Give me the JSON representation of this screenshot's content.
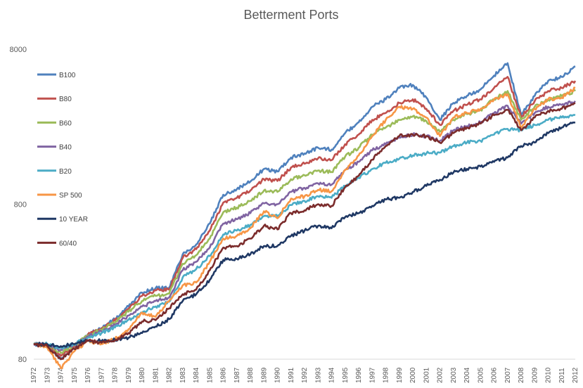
{
  "chart_data": {
    "type": "line",
    "title": "Betterment Ports",
    "xlabel": "",
    "ylabel": "",
    "y_scale": "log",
    "ylim": [
      80,
      8000
    ],
    "yticks": [
      "80",
      "800",
      "8000"
    ],
    "xlim": [
      1972,
      2012
    ],
    "x_tick_labels": [
      "1972",
      "1973",
      "1974",
      "1975",
      "1976",
      "1977",
      "1978",
      "1979",
      "1980",
      "1981",
      "1982",
      "1983",
      "1984",
      "1985",
      "1986",
      "1987",
      "1988",
      "1989",
      "1990",
      "1991",
      "1992",
      "1993",
      "1994",
      "1995",
      "1996",
      "1997",
      "1998",
      "1999",
      "2000",
      "2001",
      "2002",
      "2003",
      "2004",
      "2005",
      "2006",
      "2007",
      "2008",
      "2009",
      "2010",
      "2011",
      "2012"
    ],
    "grid": false,
    "legend_position": "left",
    "x": [
      1972,
      1973,
      1974,
      1975,
      1976,
      1977,
      1978,
      1979,
      1980,
      1981,
      1982,
      1983,
      1984,
      1985,
      1986,
      1987,
      1988,
      1989,
      1990,
      1991,
      1992,
      1993,
      1994,
      1995,
      1996,
      1997,
      1998,
      1999,
      2000,
      2001,
      2002,
      2003,
      2004,
      2005,
      2006,
      2007,
      2008,
      2009,
      2010,
      2011,
      2012
    ],
    "series": [
      {
        "name": "B100",
        "color": "#4F81BD",
        "values": [
          100,
          98,
          80,
          96,
          116,
          127,
          145,
          175,
          215,
          230,
          230,
          380,
          440,
          600,
          920,
          1000,
          1120,
          1350,
          1300,
          1600,
          1700,
          1850,
          1800,
          2300,
          2700,
          3400,
          3800,
          4500,
          4700,
          3900,
          2800,
          3600,
          4000,
          4400,
          5400,
          6500,
          3000,
          4000,
          5000,
          5300,
          6200
        ]
      },
      {
        "name": "B80",
        "color": "#C0504D",
        "values": [
          100,
          98,
          84,
          97,
          115,
          126,
          142,
          170,
          205,
          222,
          225,
          360,
          410,
          540,
          820,
          880,
          980,
          1160,
          1130,
          1380,
          1460,
          1580,
          1540,
          1950,
          2250,
          2800,
          3100,
          3600,
          3800,
          3300,
          2600,
          3200,
          3500,
          3800,
          4500,
          5300,
          2900,
          3700,
          4300,
          4500,
          5000
        ]
      },
      {
        "name": "B60",
        "color": "#9BBB59",
        "values": [
          100,
          99,
          88,
          98,
          114,
          124,
          138,
          162,
          190,
          205,
          212,
          330,
          375,
          480,
          710,
          760,
          840,
          980,
          960,
          1160,
          1230,
          1320,
          1290,
          1620,
          1850,
          2250,
          2500,
          2800,
          2950,
          2750,
          2350,
          2800,
          3050,
          3250,
          3800,
          4300,
          2800,
          3400,
          3800,
          4000,
          4300
        ]
      },
      {
        "name": "B40",
        "color": "#8064A2",
        "values": [
          100,
          99,
          92,
          99,
          112,
          121,
          133,
          153,
          175,
          190,
          200,
          300,
          340,
          420,
          600,
          640,
          700,
          810,
          800,
          960,
          1020,
          1090,
          1070,
          1330,
          1500,
          1780,
          1950,
          2150,
          2250,
          2200,
          2050,
          2400,
          2550,
          2700,
          3100,
          3450,
          2650,
          3100,
          3400,
          3500,
          3700
        ]
      },
      {
        "name": "B20",
        "color": "#4BACC6",
        "values": [
          100,
          100,
          95,
          100,
          110,
          118,
          128,
          144,
          160,
          175,
          188,
          270,
          305,
          370,
          510,
          540,
          590,
          670,
          670,
          790,
          840,
          900,
          880,
          1050,
          1180,
          1350,
          1480,
          1570,
          1650,
          1700,
          1720,
          1900,
          2000,
          2050,
          2250,
          2450,
          2400,
          2600,
          2800,
          2900,
          3000
        ]
      },
      {
        "name": "SP 500",
        "color": "#F79646",
        "values": [
          100,
          95,
          70,
          90,
          105,
          100,
          108,
          125,
          160,
          150,
          190,
          240,
          250,
          340,
          480,
          500,
          560,
          720,
          650,
          870,
          900,
          990,
          970,
          1330,
          1650,
          2200,
          2800,
          3400,
          3300,
          2900,
          2200,
          2900,
          3100,
          3300,
          3800,
          4100,
          2500,
          3300,
          3800,
          3900,
          4500
        ]
      },
      {
        "name": "10 YEAR",
        "color": "#1F3864",
        "values": [
          100,
          100,
          97,
          100,
          106,
          105,
          107,
          110,
          118,
          130,
          145,
          190,
          210,
          260,
          350,
          355,
          380,
          430,
          430,
          500,
          540,
          580,
          560,
          660,
          700,
          780,
          860,
          880,
          960,
          1050,
          1150,
          1280,
          1350,
          1400,
          1500,
          1600,
          1900,
          2000,
          2300,
          2500,
          2700
        ]
      },
      {
        "name": "60/40",
        "color": "#7B2C2C",
        "values": [
          100,
          97,
          80,
          93,
          105,
          102,
          106,
          118,
          140,
          143,
          170,
          210,
          225,
          300,
          420,
          430,
          480,
          580,
          550,
          700,
          730,
          800,
          780,
          1030,
          1220,
          1550,
          1900,
          2200,
          2250,
          2200,
          2000,
          2300,
          2500,
          2650,
          3000,
          3250,
          2400,
          2900,
          3200,
          3300,
          3600
        ]
      }
    ]
  }
}
